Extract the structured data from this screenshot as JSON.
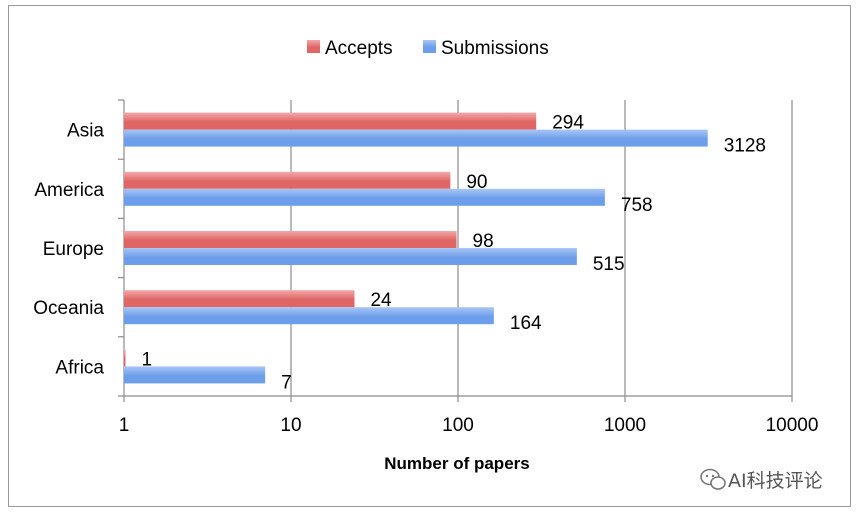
{
  "chart_data": {
    "type": "bar",
    "orientation": "horizontal",
    "categories": [
      "Asia",
      "America",
      "Europe",
      "Oceania",
      "Africa"
    ],
    "series": [
      {
        "name": "Accepts",
        "values": [
          294,
          90,
          98,
          24,
          1
        ],
        "color": "#e06666"
      },
      {
        "name": "Submissions",
        "values": [
          3128,
          758,
          515,
          164,
          7
        ],
        "color": "#6d9eeb"
      }
    ],
    "xscale": "log",
    "xlim": [
      1,
      10000
    ],
    "xticks": [
      "1",
      "10",
      "100",
      "1000",
      "10000"
    ],
    "xlabel": "Number of papers",
    "ylabel": "",
    "title": "",
    "grid": true,
    "legend_position": "top"
  },
  "watermark": {
    "text": "AI科技评论",
    "icon": "wechat-icon"
  }
}
